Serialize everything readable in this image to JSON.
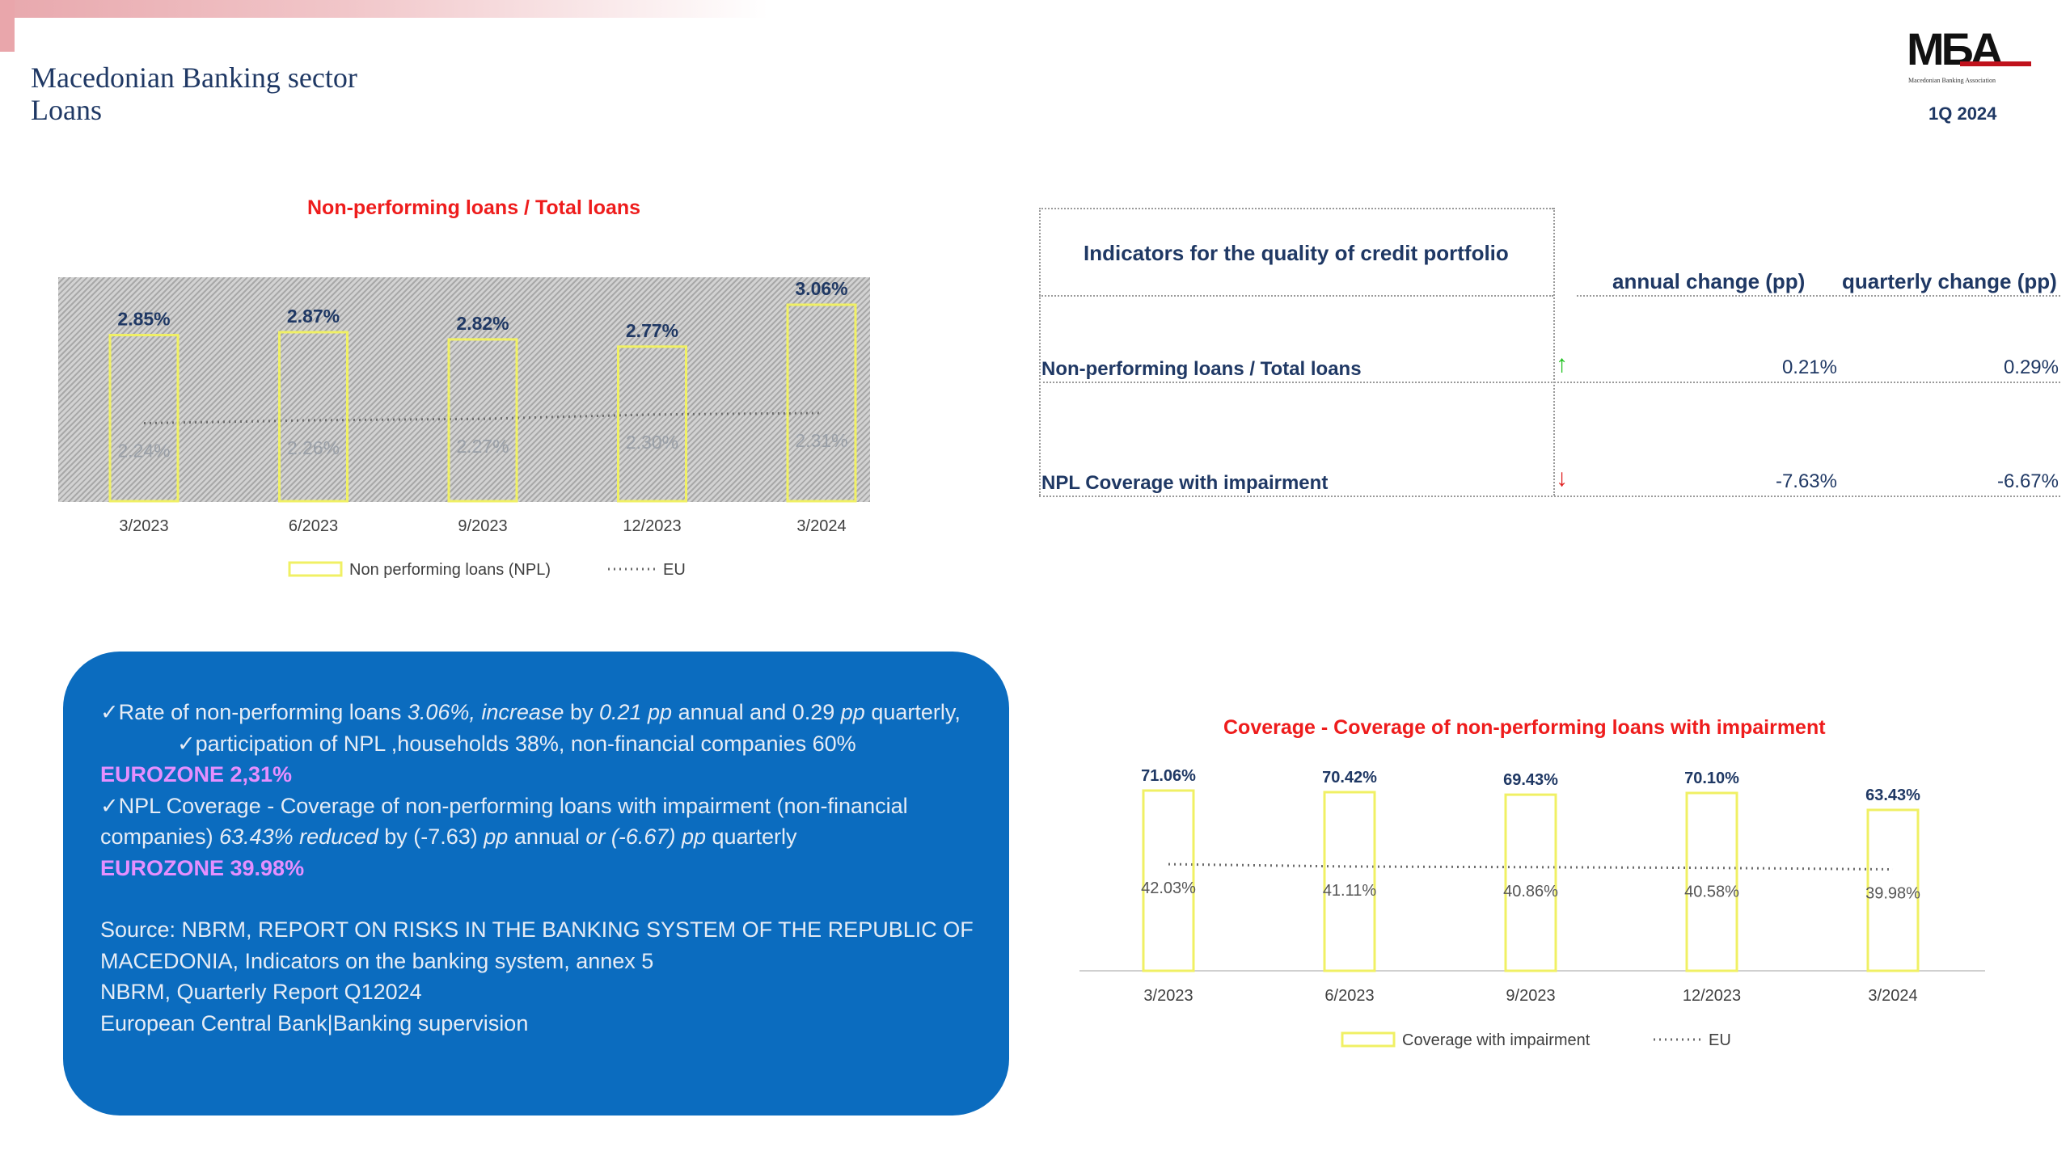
{
  "header": {
    "title_line1": "Macedonian Banking sector",
    "title_line2": "Loans",
    "logo_text": "MБA",
    "logo_subtitle": "Macedonian Banking Association",
    "period": "1Q 2024"
  },
  "colors": {
    "accent_red": "#ee1c1c",
    "navy": "#1f3864",
    "bar_outline": "#f0f064",
    "box_blue": "#0b6cbf",
    "eurozone_pink": "#e58fff",
    "arrow_up": "#22c322",
    "arrow_down": "#e02020"
  },
  "chart_data": [
    {
      "type": "bar",
      "title": "Non-performing loans  / Total loans",
      "categories": [
        "3/2023",
        "6/2023",
        "9/2023",
        "12/2023",
        "3/2024"
      ],
      "series": [
        {
          "name": "Non performing loans (NPL)",
          "values": [
            2.85,
            2.87,
            2.82,
            2.77,
            3.06
          ],
          "labels": [
            "2.85%",
            "2.87%",
            "2.82%",
            "2.77%",
            "3.06%"
          ]
        },
        {
          "name": "EU",
          "type": "line",
          "values": [
            2.24,
            2.26,
            2.27,
            2.3,
            2.31
          ],
          "labels": [
            "2.24%",
            "2.26%",
            "2.27%",
            "2.30%",
            "2.31%"
          ]
        }
      ],
      "legend": "bottom",
      "grid": false
    },
    {
      "type": "bar",
      "title": "Coverage - Coverage of non-performing loans with impairment",
      "categories": [
        "3/2023",
        "6/2023",
        "9/2023",
        "12/2023",
        "3/2024"
      ],
      "series": [
        {
          "name": "Coverage with impairment",
          "values": [
            71.06,
            70.42,
            69.43,
            70.1,
            63.43
          ],
          "labels": [
            "71.06%",
            "70.42%",
            "69.43%",
            "70.10%",
            "63.43%"
          ]
        },
        {
          "name": "EU",
          "type": "line",
          "values": [
            42.03,
            41.11,
            40.86,
            40.58,
            39.98
          ],
          "labels": [
            "42.03%",
            "41.11%",
            "40.86%",
            "40.58%",
            "39.98%"
          ]
        }
      ],
      "legend": "bottom",
      "grid": false
    }
  ],
  "indicators": {
    "heading": "Indicators for the quality of credit portfolio",
    "col_annual": "annual change (pp)",
    "col_quarterly": "quarterly change (pp)",
    "rows": [
      {
        "label": "Non-performing loans  / Total loans",
        "trend": "up",
        "arrow": "↑",
        "annual": "0.21%",
        "quarterly": "0.29%"
      },
      {
        "label": "NPL Coverage with impairment",
        "trend": "down",
        "arrow": "↓",
        "annual": "-7.63%",
        "quarterly": "-6.67%"
      }
    ]
  },
  "summary": {
    "check": "✓",
    "l1a": "Rate of non-performing loans ",
    "l1b": "3.06%, increase",
    "l1c": " by ",
    "l1d": "0.21 pp",
    "l1e": " annual and 0.29 ",
    "l1f": "pp",
    "l1g": " quarterly,",
    "l2": "participation of NPL ,households 38%, non-financial companies 60%",
    "eurozone1": "EUROZONE 2,31%",
    "l3a": "NPL Coverage - Coverage of non-performing loans with impairment (non-financial companies) ",
    "l3b": "63.43% reduced",
    "l3c": " by (-7.63) ",
    "l3d": "pp",
    "l3e": " annual ",
    "l3f": "or  (-6.67) pp",
    "l3g": " quarterly",
    "eurozone2": "EUROZONE 39.98%",
    "source1": "Source: NBRM, REPORT ON RISKS IN THE BANKING SYSTEM OF THE REPUBLIC OF MACEDONIA, Indicators on the banking system, annex 5",
    "source2": "NBRM, Quarterly Report Q12024",
    "source3": "European Central Bank|Banking supervision"
  }
}
